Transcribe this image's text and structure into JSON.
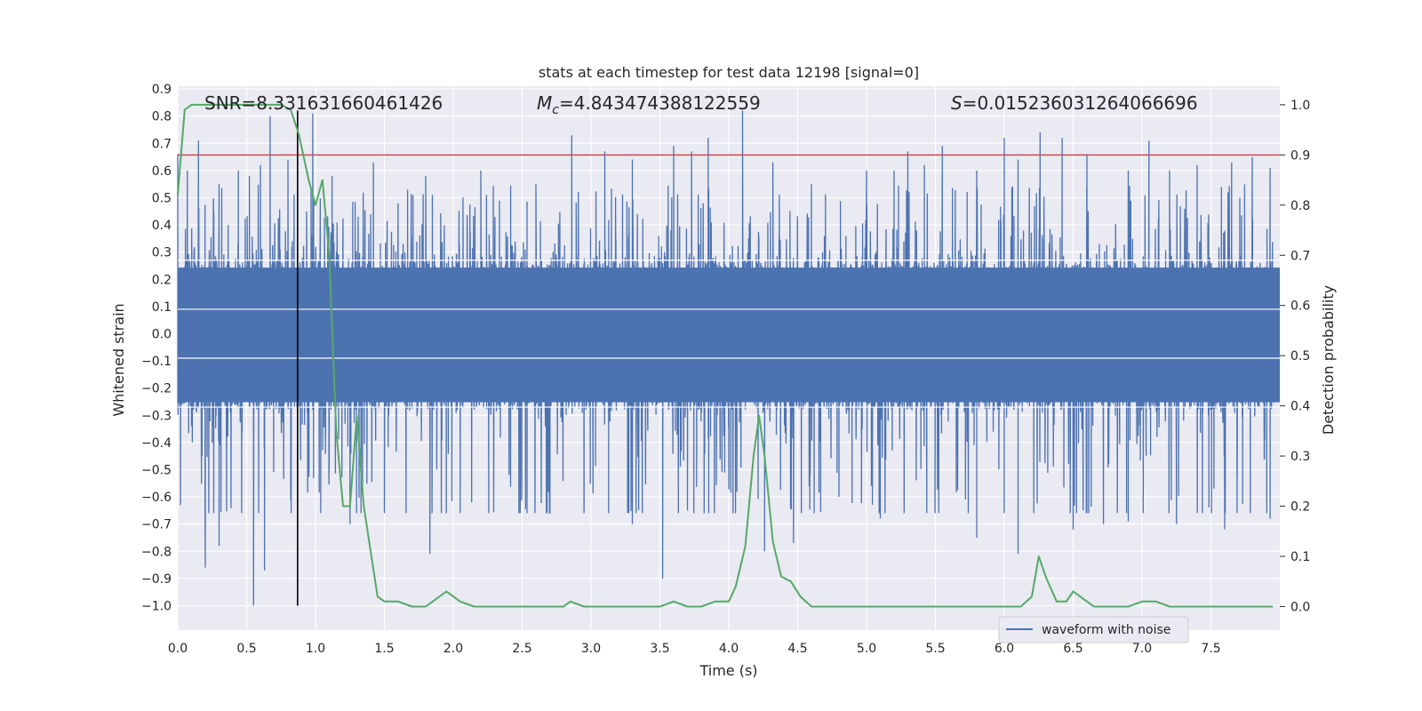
{
  "chart_data": {
    "type": "line",
    "title": "stats at each timestep for test data 12198 [signal=0]",
    "xlabel": "Time (s)",
    "ylabel": "Whitened strain",
    "y2label": "Detection probability",
    "xlim": [
      0.0,
      8.0
    ],
    "ylim": [
      -1.09,
      0.91
    ],
    "y2lim": [
      -0.047,
      1.037
    ],
    "x_ticks": [
      "0.0",
      "0.5",
      "1.0",
      "1.5",
      "2.0",
      "2.5",
      "3.0",
      "3.5",
      "4.0",
      "4.5",
      "5.0",
      "5.5",
      "6.0",
      "6.5",
      "7.0",
      "7.5"
    ],
    "y_ticks": [
      "0.9",
      "0.8",
      "0.7",
      "0.6",
      "0.5",
      "0.4",
      "0.3",
      "0.2",
      "0.1",
      "0.0",
      "−0.1",
      "−0.2",
      "−0.3",
      "−0.4",
      "−0.5",
      "−0.6",
      "−0.7",
      "−0.8",
      "−0.9",
      "−1.0"
    ],
    "y2_ticks": [
      "1.0",
      "0.9",
      "0.8",
      "0.7",
      "0.6",
      "0.5",
      "0.4",
      "0.3",
      "0.2",
      "0.1",
      "0.0"
    ],
    "grid": true,
    "legend": {
      "placement": "bottom-right",
      "entries": [
        "waveform with noise"
      ]
    },
    "annotations": {
      "snr": "SNR=8.331631660461426",
      "mc_symbol": "M",
      "mc_sub": "c",
      "mc_value": "=4.843474388122559",
      "s_symbol": "S",
      "s_value": "=0.015236031264066696"
    },
    "threshold": {
      "axis": "y2",
      "value": 0.9,
      "color": "#c44e52"
    },
    "marker_vline": {
      "x": 0.87,
      "y_from": -1.0,
      "y_to": 0.82,
      "color": "#000000"
    },
    "series": [
      {
        "name": "waveform with noise",
        "axis": "y",
        "color": "#4c72b0",
        "noise_sample_step_s": 0.0025,
        "typical_band": [
          -0.28,
          0.27
        ],
        "spikes_up": [
          [
            0.0,
            0.66
          ],
          [
            0.07,
            0.6
          ],
          [
            0.15,
            0.71
          ],
          [
            0.3,
            0.55
          ],
          [
            0.44,
            0.6
          ],
          [
            0.52,
            0.58
          ],
          [
            0.6,
            0.62
          ],
          [
            0.67,
            0.8
          ],
          [
            0.8,
            0.64
          ],
          [
            0.98,
            0.81
          ],
          [
            1.12,
            0.58
          ],
          [
            1.42,
            0.63
          ],
          [
            1.8,
            0.58
          ],
          [
            2.2,
            0.6
          ],
          [
            2.6,
            0.55
          ],
          [
            2.86,
            0.73
          ],
          [
            3.1,
            0.67
          ],
          [
            3.3,
            0.64
          ],
          [
            3.6,
            0.69
          ],
          [
            3.73,
            0.67
          ],
          [
            3.85,
            0.72
          ],
          [
            4.1,
            0.82
          ],
          [
            4.32,
            0.63
          ],
          [
            4.6,
            0.55
          ],
          [
            5.0,
            0.6
          ],
          [
            5.2,
            0.6
          ],
          [
            5.3,
            0.67
          ],
          [
            5.42,
            0.62
          ],
          [
            5.55,
            0.69
          ],
          [
            5.8,
            0.6
          ],
          [
            6.0,
            0.72
          ],
          [
            6.1,
            0.64
          ],
          [
            6.26,
            0.74
          ],
          [
            6.42,
            0.72
          ],
          [
            6.6,
            0.66
          ],
          [
            6.9,
            0.6
          ],
          [
            7.05,
            0.71
          ],
          [
            7.2,
            0.6
          ],
          [
            7.4,
            0.62
          ],
          [
            7.65,
            0.63
          ],
          [
            7.8,
            0.65
          ],
          [
            7.93,
            0.61
          ]
        ],
        "spikes_down": [
          [
            0.02,
            -0.63
          ],
          [
            0.2,
            -0.86
          ],
          [
            0.3,
            -0.78
          ],
          [
            0.55,
            -1.0
          ],
          [
            0.63,
            -0.87
          ],
          [
            0.82,
            -0.61
          ],
          [
            1.25,
            -0.7
          ],
          [
            1.5,
            -0.66
          ],
          [
            1.83,
            -0.81
          ],
          [
            2.05,
            -0.66
          ],
          [
            2.7,
            -0.66
          ],
          [
            3.3,
            -0.7
          ],
          [
            3.52,
            -0.9
          ],
          [
            3.7,
            -0.65
          ],
          [
            4.26,
            -0.8
          ],
          [
            4.47,
            -0.77
          ],
          [
            4.8,
            -0.6
          ],
          [
            5.1,
            -0.68
          ],
          [
            5.8,
            -0.75
          ],
          [
            6.1,
            -0.81
          ],
          [
            6.5,
            -0.72
          ],
          [
            6.72,
            -0.7
          ],
          [
            6.9,
            -0.69
          ],
          [
            7.25,
            -0.7
          ],
          [
            7.6,
            -0.72
          ],
          [
            7.93,
            -0.68
          ]
        ]
      },
      {
        "name": "",
        "axis": "y2",
        "color": "#55a868",
        "x": [
          0.0,
          0.05,
          0.1,
          0.15,
          0.25,
          0.35,
          0.45,
          0.55,
          0.65,
          0.75,
          0.82,
          0.88,
          0.95,
          1.0,
          1.05,
          1.1,
          1.15,
          1.2,
          1.25,
          1.3,
          1.35,
          1.45,
          1.5,
          1.6,
          1.7,
          1.75,
          1.8,
          1.85,
          1.95,
          2.05,
          2.15,
          2.3,
          2.5,
          2.7,
          2.8,
          2.85,
          2.95,
          3.05,
          3.2,
          3.35,
          3.5,
          3.6,
          3.7,
          3.8,
          3.9,
          4.0,
          4.05,
          4.12,
          4.18,
          4.22,
          4.26,
          4.32,
          4.38,
          4.45,
          4.52,
          4.6,
          4.7,
          4.85,
          5.0,
          5.2,
          5.4,
          5.6,
          5.8,
          5.95,
          6.05,
          6.12,
          6.2,
          6.25,
          6.3,
          6.38,
          6.45,
          6.5,
          6.55,
          6.6,
          6.65,
          6.7,
          6.8,
          6.9,
          7.0,
          7.05,
          7.1,
          7.2,
          7.3,
          7.5,
          7.7,
          7.85,
          7.95
        ],
        "y": [
          0.82,
          0.99,
          1.0,
          1.0,
          1.0,
          1.0,
          1.0,
          1.0,
          1.0,
          1.0,
          0.99,
          0.94,
          0.85,
          0.8,
          0.85,
          0.7,
          0.35,
          0.2,
          0.2,
          0.38,
          0.2,
          0.02,
          0.01,
          0.01,
          0.0,
          0.0,
          0.0,
          0.01,
          0.03,
          0.01,
          0.0,
          0.0,
          0.0,
          0.0,
          0.0,
          0.01,
          0.0,
          0.0,
          0.0,
          0.0,
          0.0,
          0.01,
          0.0,
          0.0,
          0.01,
          0.01,
          0.04,
          0.12,
          0.3,
          0.38,
          0.3,
          0.13,
          0.06,
          0.05,
          0.02,
          0.0,
          0.0,
          0.0,
          0.0,
          0.0,
          0.0,
          0.0,
          0.0,
          0.0,
          0.0,
          0.0,
          0.02,
          0.1,
          0.06,
          0.01,
          0.01,
          0.03,
          0.02,
          0.01,
          0.0,
          0.0,
          0.0,
          0.0,
          0.01,
          0.01,
          0.01,
          0.0,
          0.0,
          0.0,
          0.0,
          0.0,
          0.0
        ]
      }
    ]
  }
}
